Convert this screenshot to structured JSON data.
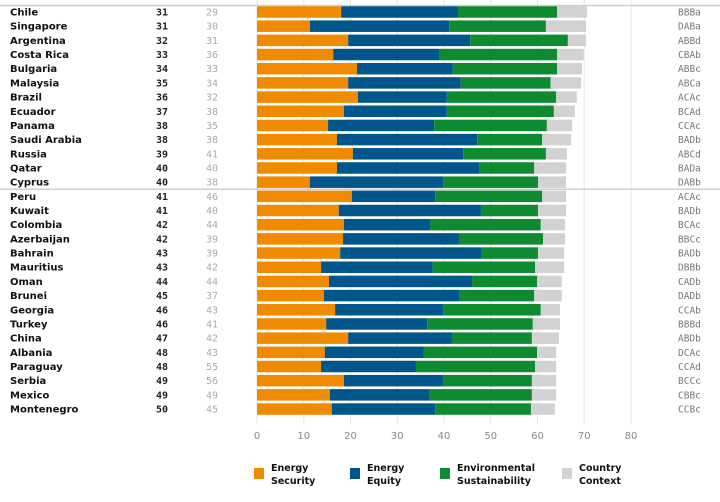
{
  "chart_data": {
    "type": "bar",
    "orientation": "horizontal",
    "stacked": true,
    "xlim": [
      0,
      80
    ],
    "xticks": [
      0,
      10,
      20,
      30,
      40,
      50,
      60,
      70,
      80
    ],
    "grid": true,
    "legend_placement": "bottom",
    "colors": {
      "Energy Security": "#F08A00",
      "Energy Equity": "#00558A",
      "Environmental Sustainability": "#0E8A30",
      "Country Context": "#D2D2D2"
    },
    "series_names": [
      "Energy Security",
      "Energy Equity",
      "Environmental Sustainability",
      "Country Context"
    ],
    "legend": [
      {
        "line1": "Energy",
        "line2": "Security"
      },
      {
        "line1": "Energy",
        "line2": "Equity"
      },
      {
        "line1": "Environmental",
        "line2": "Sustainability"
      },
      {
        "line1": "Country",
        "line2": "Context"
      }
    ],
    "rows": [
      {
        "country": "Chile",
        "rank": "31",
        "prev_rank": "29",
        "code": "BBBa",
        "values": [
          18.0,
          25.0,
          21.2,
          6.4
        ]
      },
      {
        "country": "Singapore",
        "rank": "31",
        "prev_rank": "30",
        "code": "DABa",
        "values": [
          11.3,
          29.8,
          20.7,
          8.6
        ]
      },
      {
        "country": "Argentina",
        "rank": "32",
        "prev_rank": "31",
        "code": "ABBd",
        "values": [
          19.5,
          26.1,
          20.9,
          3.9
        ]
      },
      {
        "country": "Costa Rica",
        "rank": "33",
        "prev_rank": "36",
        "code": "CBAb",
        "values": [
          16.3,
          22.8,
          25.1,
          5.7
        ]
      },
      {
        "country": "Bulgaria",
        "rank": "34",
        "prev_rank": "33",
        "code": "ABBc",
        "values": [
          21.4,
          20.5,
          22.3,
          5.3
        ]
      },
      {
        "country": "Malaysia",
        "rank": "35",
        "prev_rank": "34",
        "code": "ABCa",
        "values": [
          19.5,
          24.1,
          19.2,
          6.5
        ]
      },
      {
        "country": "Brazil",
        "rank": "36",
        "prev_rank": "32",
        "code": "ACAc",
        "values": [
          21.6,
          19.0,
          23.4,
          4.4
        ]
      },
      {
        "country": "Ecuador",
        "rank": "37",
        "prev_rank": "38",
        "code": "BCAd",
        "values": [
          18.6,
          22.0,
          22.9,
          4.5
        ]
      },
      {
        "country": "Panama",
        "rank": "38",
        "prev_rank": "35",
        "code": "CCAc",
        "values": [
          15.2,
          22.7,
          24.1,
          5.4
        ]
      },
      {
        "country": "Saudi Arabia",
        "rank": "38",
        "prev_rank": "38",
        "code": "BADb",
        "values": [
          17.1,
          30.0,
          13.9,
          6.2
        ]
      },
      {
        "country": "Russia",
        "rank": "39",
        "prev_rank": "41",
        "code": "ABCd",
        "values": [
          20.5,
          23.6,
          17.7,
          4.5
        ]
      },
      {
        "country": "Qatar",
        "rank": "40",
        "prev_rank": "40",
        "code": "BADa",
        "values": [
          17.1,
          30.4,
          11.8,
          6.8
        ]
      },
      {
        "country": "Cyprus",
        "rank": "40",
        "prev_rank": "38",
        "code": "DABb",
        "values": [
          11.3,
          28.5,
          20.3,
          6.0
        ]
      },
      {
        "country": "Peru",
        "rank": "41",
        "prev_rank": "46",
        "code": "ACAc",
        "values": [
          20.3,
          17.8,
          22.9,
          5.1
        ]
      },
      {
        "country": "Kuwait",
        "rank": "41",
        "prev_rank": "40",
        "code": "BADb",
        "values": [
          17.5,
          30.4,
          12.2,
          6.0
        ]
      },
      {
        "country": "Colombia",
        "rank": "42",
        "prev_rank": "44",
        "code": "BCAc",
        "values": [
          18.6,
          18.4,
          23.7,
          5.2
        ]
      },
      {
        "country": "Azerbaijan",
        "rank": "42",
        "prev_rank": "39",
        "code": "BBCc",
        "values": [
          18.4,
          24.8,
          18.0,
          4.7
        ]
      },
      {
        "country": "Bahrain",
        "rank": "43",
        "prev_rank": "39",
        "code": "BADb",
        "values": [
          17.8,
          30.3,
          12.0,
          5.6
        ]
      },
      {
        "country": "Mauritius",
        "rank": "43",
        "prev_rank": "42",
        "code": "DBBb",
        "values": [
          13.7,
          23.9,
          21.9,
          6.2
        ]
      },
      {
        "country": "Oman",
        "rank": "44",
        "prev_rank": "44",
        "code": "CADb",
        "values": [
          15.4,
          30.6,
          13.9,
          5.3
        ]
      },
      {
        "country": "Brunei",
        "rank": "45",
        "prev_rank": "37",
        "code": "DADb",
        "values": [
          14.3,
          28.9,
          16.1,
          5.9
        ]
      },
      {
        "country": "Georgia",
        "rank": "46",
        "prev_rank": "43",
        "code": "CCAb",
        "values": [
          16.7,
          23.1,
          20.9,
          4.1
        ]
      },
      {
        "country": "Turkey",
        "rank": "46",
        "prev_rank": "41",
        "code": "BBBd",
        "values": [
          14.8,
          21.6,
          22.6,
          5.8
        ]
      },
      {
        "country": "China",
        "rank": "47",
        "prev_rank": "42",
        "code": "ABDb",
        "values": [
          19.5,
          22.2,
          17.1,
          5.8
        ]
      },
      {
        "country": "Albania",
        "rank": "48",
        "prev_rank": "43",
        "code": "DCAc",
        "values": [
          14.5,
          21.2,
          24.2,
          4.1
        ]
      },
      {
        "country": "Paraguay",
        "rank": "48",
        "prev_rank": "55",
        "code": "CCAd",
        "values": [
          13.7,
          20.3,
          25.5,
          4.5
        ]
      },
      {
        "country": "Serbia",
        "rank": "49",
        "prev_rank": "56",
        "code": "BCCc",
        "values": [
          18.6,
          21.2,
          19.0,
          5.2
        ]
      },
      {
        "country": "Mexico",
        "rank": "49",
        "prev_rank": "49",
        "code": "CBBc",
        "values": [
          15.6,
          21.2,
          22.0,
          5.2
        ]
      },
      {
        "country": "Montenegro",
        "rank": "50",
        "prev_rank": "45",
        "code": "CCBc",
        "values": [
          16.0,
          22.1,
          20.5,
          5.1
        ]
      }
    ]
  }
}
